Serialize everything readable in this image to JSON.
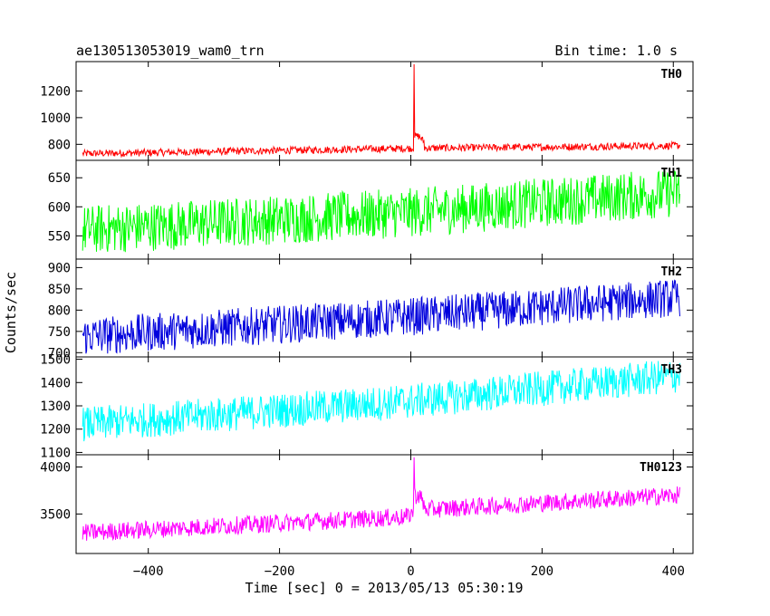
{
  "header": {
    "title": "ae130513053019_wam0_trn",
    "bin_time": "Bin time: 1.0 s"
  },
  "chart_data": {
    "type": "line",
    "title": "ae130513053019_wam0_trn",
    "xlabel": "Time [sec] 0 = 2013/05/13 05:30:19",
    "ylabel": "Counts/sec",
    "xlim": [
      -510,
      430
    ],
    "x_ticks": [
      -400,
      -200,
      0,
      200,
      400
    ],
    "x_tick_labels": [
      "−400",
      "−200",
      "0",
      "200",
      "400"
    ],
    "x_range": [
      -500,
      410
    ],
    "bin_time_s": 1.0,
    "grid": false,
    "panels": [
      {
        "name": "TH0",
        "color": "#ff0000",
        "ylim": [
          680,
          1420
        ],
        "yticks": [
          800,
          1000,
          1200
        ],
        "trend": [
          [
            -500,
            730
          ],
          [
            0,
            770
          ],
          [
            410,
            790
          ]
        ],
        "noise": 55,
        "burst": {
          "x": 5,
          "peak": 1420,
          "decay": [
            [
              8,
              860
            ],
            [
              15,
              820
            ]
          ]
        }
      },
      {
        "name": "TH1",
        "color": "#00ff00",
        "ylim": [
          510,
          680
        ],
        "yticks": [
          550,
          600,
          650
        ],
        "trend": [
          [
            -500,
            560
          ],
          [
            0,
            590
          ],
          [
            410,
            625
          ]
        ],
        "noise": 85
      },
      {
        "name": "TH2",
        "color": "#0000dd",
        "ylim": [
          690,
          920
        ],
        "yticks": [
          700,
          750,
          800,
          850,
          900
        ],
        "trend": [
          [
            -500,
            738
          ],
          [
            0,
            785
          ],
          [
            410,
            830
          ]
        ],
        "noise": 90
      },
      {
        "name": "TH3",
        "color": "#00ffff",
        "ylim": [
          1090,
          1510
        ],
        "yticks": [
          1100,
          1200,
          1300,
          1400,
          1500
        ],
        "trend": [
          [
            -500,
            1220
          ],
          [
            0,
            1320
          ],
          [
            410,
            1430
          ]
        ],
        "noise": 150
      },
      {
        "name": "TH0123",
        "color": "#ff00ff",
        "ylim": [
          3080,
          4130
        ],
        "yticks": [
          3500,
          4000
        ],
        "trend": [
          [
            -500,
            3300
          ],
          [
            -5,
            3470
          ],
          [
            5,
            3540
          ],
          [
            410,
            3700
          ]
        ],
        "noise": 190,
        "burst": {
          "x": 5,
          "peak": 4130,
          "decay": [
            [
              8,
              3700
            ],
            [
              15,
              3600
            ]
          ]
        }
      }
    ]
  }
}
